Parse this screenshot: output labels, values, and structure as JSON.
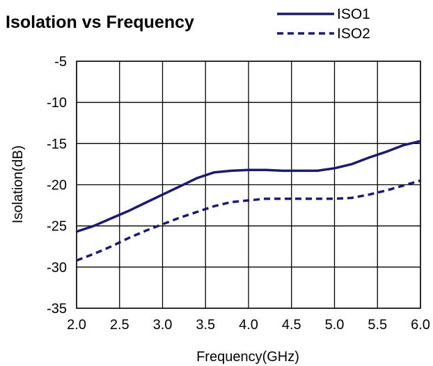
{
  "chart_data": {
    "type": "line",
    "title": "Isolation vs Frequency",
    "xlabel": "Frequency(GHz)",
    "ylabel": "Isolation(dB)",
    "xlim": [
      2.0,
      6.0
    ],
    "ylim": [
      -35,
      -5
    ],
    "xticks": [
      "2.0",
      "2.5",
      "3.0",
      "3.5",
      "4.0",
      "4.5",
      "5.0",
      "5.5",
      "6.0"
    ],
    "yticks": [
      "-5",
      "-10",
      "-15",
      "-20",
      "-25",
      "-30",
      "-35"
    ],
    "grid": true,
    "legend": "top-right",
    "colors": {
      "line": "#1a1a6e",
      "grid": "#000000"
    },
    "series": [
      {
        "name": "ISO1",
        "style": "solid",
        "x": [
          2.0,
          2.2,
          2.4,
          2.6,
          2.8,
          3.0,
          3.2,
          3.4,
          3.6,
          3.8,
          4.0,
          4.2,
          4.4,
          4.6,
          4.8,
          5.0,
          5.2,
          5.4,
          5.6,
          5.8,
          6.0
        ],
        "y": [
          -25.7,
          -25.0,
          -24.1,
          -23.2,
          -22.2,
          -21.2,
          -20.2,
          -19.2,
          -18.5,
          -18.3,
          -18.2,
          -18.2,
          -18.3,
          -18.3,
          -18.3,
          -18.0,
          -17.5,
          -16.7,
          -16.0,
          -15.2,
          -14.7
        ]
      },
      {
        "name": "ISO2",
        "style": "dashed",
        "x": [
          2.0,
          2.2,
          2.4,
          2.6,
          2.8,
          3.0,
          3.2,
          3.4,
          3.6,
          3.8,
          4.0,
          4.2,
          4.4,
          4.6,
          4.8,
          5.0,
          5.2,
          5.4,
          5.6,
          5.8,
          6.0
        ],
        "y": [
          -29.2,
          -28.4,
          -27.5,
          -26.5,
          -25.6,
          -24.8,
          -24.0,
          -23.3,
          -22.6,
          -22.1,
          -21.9,
          -21.7,
          -21.7,
          -21.7,
          -21.7,
          -21.7,
          -21.6,
          -21.2,
          -20.7,
          -20.1,
          -19.5
        ]
      }
    ]
  }
}
